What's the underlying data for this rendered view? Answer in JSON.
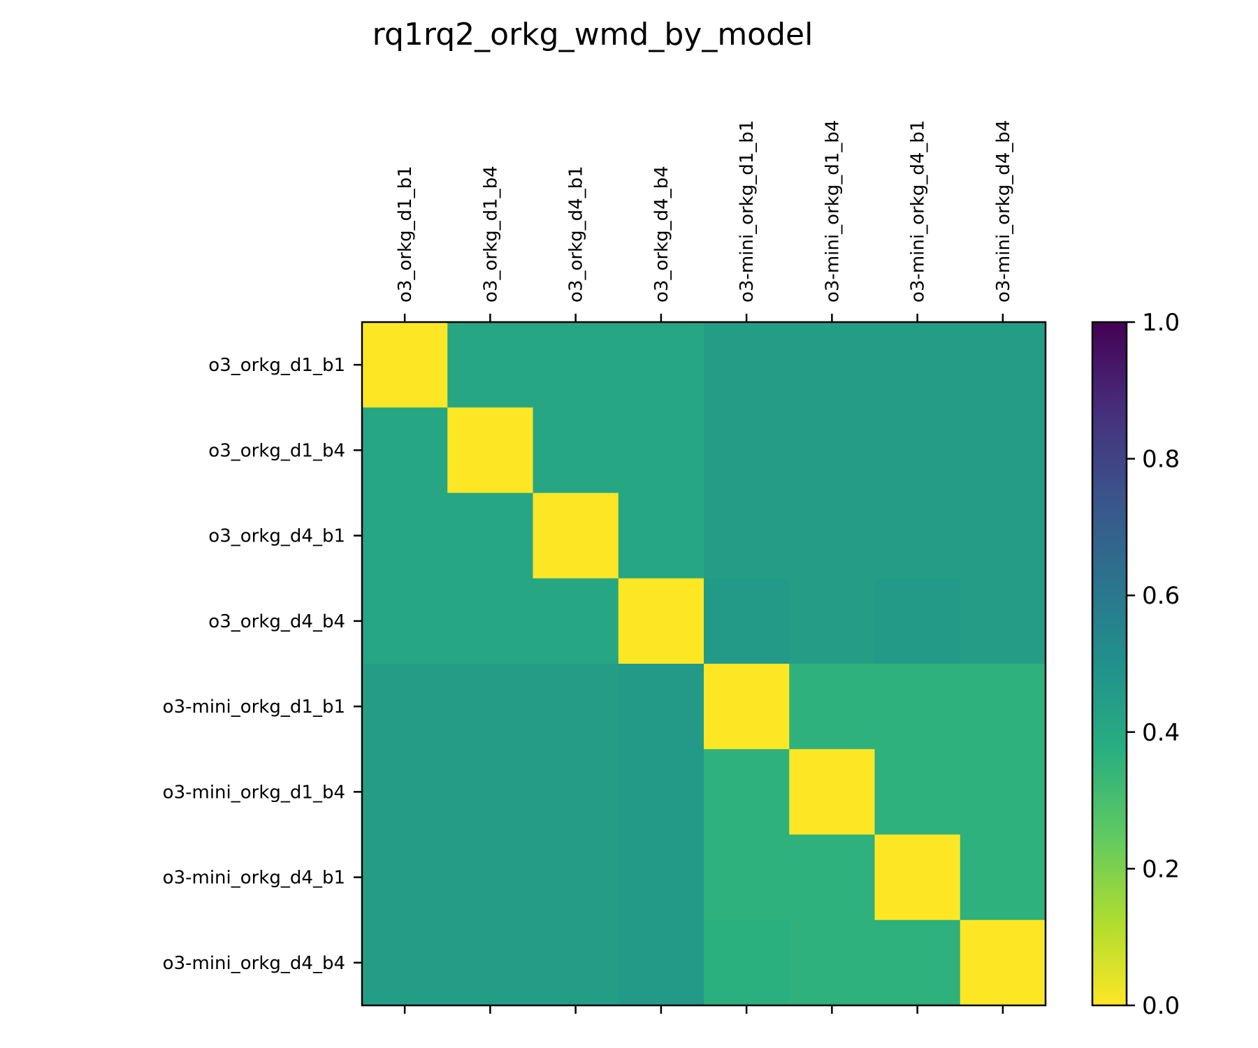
{
  "chart_data": {
    "type": "heatmap",
    "title": "rq1rq2_orkg_wmd_by_model",
    "x_labels": [
      "o3_orkg_d1_b1",
      "o3_orkg_d1_b4",
      "o3_orkg_d4_b1",
      "o3_orkg_d4_b4",
      "o3-mini_orkg_d1_b1",
      "o3-mini_orkg_d1_b4",
      "o3-mini_orkg_d4_b1",
      "o3-mini_orkg_d4_b4"
    ],
    "y_labels": [
      "o3_orkg_d1_b1",
      "o3_orkg_d1_b4",
      "o3_orkg_d4_b1",
      "o3_orkg_d4_b4",
      "o3-mini_orkg_d1_b1",
      "o3-mini_orkg_d1_b4",
      "o3-mini_orkg_d4_b1",
      "o3-mini_orkg_d4_b4"
    ],
    "values": [
      [
        0.0,
        0.41,
        0.41,
        0.41,
        0.45,
        0.45,
        0.45,
        0.45
      ],
      [
        0.41,
        0.0,
        0.41,
        0.41,
        0.45,
        0.45,
        0.45,
        0.45
      ],
      [
        0.41,
        0.41,
        0.0,
        0.41,
        0.45,
        0.45,
        0.45,
        0.45
      ],
      [
        0.41,
        0.41,
        0.41,
        0.0,
        0.46,
        0.45,
        0.46,
        0.45
      ],
      [
        0.45,
        0.45,
        0.45,
        0.46,
        0.0,
        0.36,
        0.36,
        0.36
      ],
      [
        0.45,
        0.45,
        0.45,
        0.46,
        0.36,
        0.0,
        0.36,
        0.36
      ],
      [
        0.45,
        0.45,
        0.45,
        0.46,
        0.36,
        0.36,
        0.0,
        0.36
      ],
      [
        0.45,
        0.45,
        0.45,
        0.46,
        0.37,
        0.36,
        0.36,
        0.0
      ]
    ],
    "colormap": "viridis_r",
    "colorbar": {
      "range": [
        0.0,
        1.0
      ],
      "ticks": [
        "0.0",
        "0.2",
        "0.4",
        "0.6",
        "0.8",
        "1.0"
      ]
    },
    "x_tick_position": "top"
  }
}
